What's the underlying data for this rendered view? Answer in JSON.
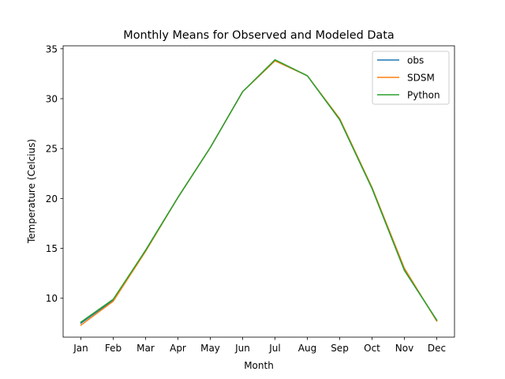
{
  "chart_data": {
    "type": "line",
    "title": "Monthly Means for Observed and Modeled Data",
    "xlabel": "Month",
    "ylabel": "Temperature (Celcius)",
    "categories": [
      "Jan",
      "Feb",
      "Mar",
      "Apr",
      "May",
      "Jun",
      "Jul",
      "Aug",
      "Sep",
      "Oct",
      "Nov",
      "Dec"
    ],
    "ylim": [
      6.1,
      35.3
    ],
    "yticks": [
      10,
      15,
      20,
      25,
      30,
      35
    ],
    "grid": false,
    "legend_position": "top-right",
    "series": [
      {
        "name": "obs",
        "color": "#1f77b4",
        "values": [
          7.5,
          9.8,
          14.8,
          20.1,
          25.1,
          30.7,
          33.8,
          32.3,
          27.9,
          21.0,
          12.8,
          7.8
        ]
      },
      {
        "name": "SDSM",
        "color": "#ff7f0e",
        "values": [
          7.3,
          9.7,
          14.7,
          20.1,
          25.1,
          30.7,
          33.8,
          32.3,
          28.0,
          21.1,
          13.0,
          7.7
        ]
      },
      {
        "name": "Python",
        "color": "#2ca02c",
        "values": [
          7.6,
          9.9,
          14.8,
          20.1,
          25.1,
          30.7,
          33.9,
          32.3,
          27.9,
          21.0,
          12.8,
          7.8
        ]
      }
    ]
  }
}
